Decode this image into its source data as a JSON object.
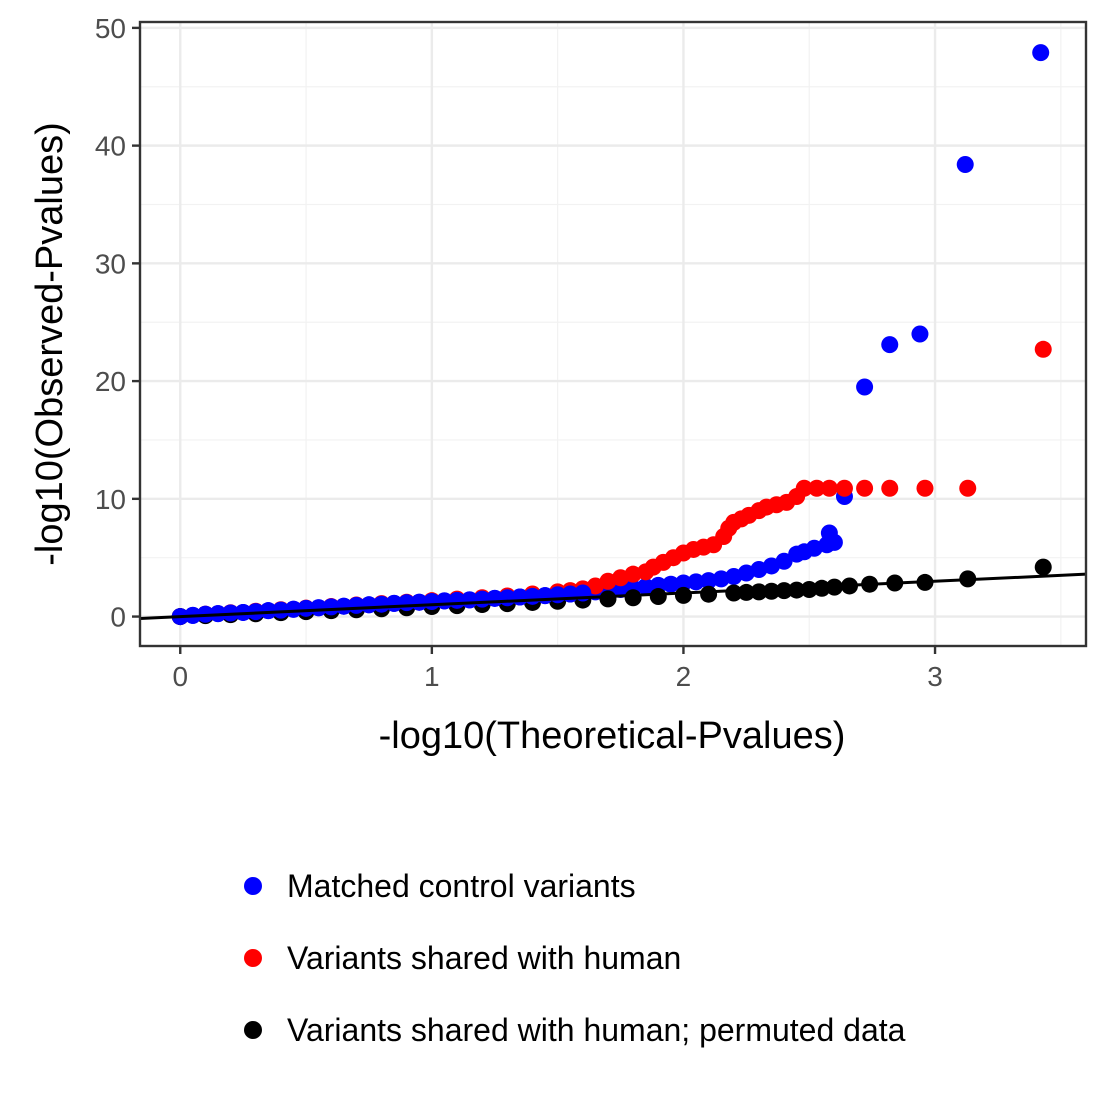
{
  "chart_data": {
    "type": "scatter",
    "title": "",
    "xlabel": "-log10(Theoretical-Pvalues)",
    "ylabel": "-log10(Observed-Pvalues)",
    "xlim": [
      -0.16,
      3.6
    ],
    "ylim": [
      -2.5,
      50.5
    ],
    "x_ticks": [
      0,
      1,
      2,
      3
    ],
    "x_tick_labels": [
      "0",
      "1",
      "2",
      "3"
    ],
    "y_ticks": [
      0,
      10,
      20,
      30,
      40,
      50
    ],
    "y_tick_labels": [
      "0",
      "10",
      "20",
      "30",
      "40",
      "50"
    ],
    "grid": true,
    "legend_position": "bottom",
    "reference_line": {
      "slope": 1,
      "intercept": 0
    },
    "series": [
      {
        "name": "Matched control variants",
        "color": "#0000ff",
        "points": [
          [
            0.0,
            0.0
          ],
          [
            0.05,
            0.1
          ],
          [
            0.1,
            0.2
          ],
          [
            0.15,
            0.25
          ],
          [
            0.2,
            0.3
          ],
          [
            0.25,
            0.35
          ],
          [
            0.3,
            0.42
          ],
          [
            0.35,
            0.5
          ],
          [
            0.4,
            0.55
          ],
          [
            0.45,
            0.62
          ],
          [
            0.5,
            0.7
          ],
          [
            0.55,
            0.75
          ],
          [
            0.6,
            0.82
          ],
          [
            0.65,
            0.88
          ],
          [
            0.7,
            0.95
          ],
          [
            0.75,
            1.0
          ],
          [
            0.8,
            1.05
          ],
          [
            0.85,
            1.12
          ],
          [
            0.9,
            1.18
          ],
          [
            0.95,
            1.22
          ],
          [
            1.0,
            1.28
          ],
          [
            1.05,
            1.33
          ],
          [
            1.1,
            1.38
          ],
          [
            1.15,
            1.42
          ],
          [
            1.2,
            1.48
          ],
          [
            1.25,
            1.55
          ],
          [
            1.3,
            1.6
          ],
          [
            1.35,
            1.66
          ],
          [
            1.4,
            1.72
          ],
          [
            1.45,
            1.78
          ],
          [
            1.5,
            1.85
          ],
          [
            1.55,
            1.92
          ],
          [
            1.6,
            2.0
          ],
          [
            1.65,
            2.1
          ],
          [
            1.7,
            2.2
          ],
          [
            1.75,
            2.3
          ],
          [
            1.8,
            2.42
          ],
          [
            1.85,
            2.55
          ],
          [
            1.9,
            2.65
          ],
          [
            1.95,
            2.75
          ],
          [
            2.0,
            2.85
          ],
          [
            2.05,
            2.95
          ],
          [
            2.1,
            3.05
          ],
          [
            2.15,
            3.2
          ],
          [
            2.2,
            3.4
          ],
          [
            2.25,
            3.7
          ],
          [
            2.3,
            4.0
          ],
          [
            2.35,
            4.3
          ],
          [
            2.4,
            4.7
          ],
          [
            2.45,
            5.3
          ],
          [
            2.48,
            5.5
          ],
          [
            2.52,
            5.8
          ],
          [
            2.57,
            6.1
          ],
          [
            2.6,
            6.3
          ],
          [
            2.58,
            7.1
          ],
          [
            2.64,
            10.2
          ],
          [
            2.72,
            19.5
          ],
          [
            2.82,
            23.1
          ],
          [
            2.94,
            24.0
          ],
          [
            3.12,
            38.4
          ],
          [
            3.42,
            47.9
          ]
        ]
      },
      {
        "name": "Variants shared with human",
        "color": "#ff0000",
        "points": [
          [
            0.0,
            0.0
          ],
          [
            0.1,
            0.2
          ],
          [
            0.2,
            0.32
          ],
          [
            0.3,
            0.45
          ],
          [
            0.4,
            0.58
          ],
          [
            0.5,
            0.72
          ],
          [
            0.6,
            0.85
          ],
          [
            0.7,
            0.98
          ],
          [
            0.8,
            1.1
          ],
          [
            0.9,
            1.22
          ],
          [
            1.0,
            1.35
          ],
          [
            1.1,
            1.48
          ],
          [
            1.2,
            1.6
          ],
          [
            1.3,
            1.75
          ],
          [
            1.4,
            1.92
          ],
          [
            1.5,
            2.1
          ],
          [
            1.55,
            2.2
          ],
          [
            1.6,
            2.35
          ],
          [
            1.65,
            2.6
          ],
          [
            1.7,
            3.0
          ],
          [
            1.75,
            3.3
          ],
          [
            1.8,
            3.6
          ],
          [
            1.85,
            3.8
          ],
          [
            1.88,
            4.2
          ],
          [
            1.92,
            4.6
          ],
          [
            1.96,
            5.0
          ],
          [
            2.0,
            5.4
          ],
          [
            2.04,
            5.7
          ],
          [
            2.08,
            5.9
          ],
          [
            2.12,
            6.1
          ],
          [
            2.16,
            6.8
          ],
          [
            2.18,
            7.5
          ],
          [
            2.2,
            8.0
          ],
          [
            2.23,
            8.3
          ],
          [
            2.26,
            8.6
          ],
          [
            2.3,
            9.0
          ],
          [
            2.33,
            9.3
          ],
          [
            2.37,
            9.5
          ],
          [
            2.41,
            9.7
          ],
          [
            2.45,
            10.2
          ],
          [
            2.48,
            10.9
          ],
          [
            2.53,
            10.9
          ],
          [
            2.58,
            10.9
          ],
          [
            2.64,
            10.9
          ],
          [
            2.72,
            10.9
          ],
          [
            2.82,
            10.9
          ],
          [
            2.96,
            10.9
          ],
          [
            3.13,
            10.9
          ],
          [
            3.43,
            22.7
          ]
        ]
      },
      {
        "name": "Variants shared with human; permuted data",
        "color": "#000000",
        "points": [
          [
            0.0,
            0.0
          ],
          [
            0.1,
            0.08
          ],
          [
            0.2,
            0.16
          ],
          [
            0.3,
            0.24
          ],
          [
            0.4,
            0.33
          ],
          [
            0.5,
            0.42
          ],
          [
            0.6,
            0.5
          ],
          [
            0.7,
            0.58
          ],
          [
            0.8,
            0.66
          ],
          [
            0.9,
            0.75
          ],
          [
            1.0,
            0.85
          ],
          [
            1.1,
            0.93
          ],
          [
            1.2,
            1.02
          ],
          [
            1.3,
            1.1
          ],
          [
            1.4,
            1.2
          ],
          [
            1.5,
            1.3
          ],
          [
            1.6,
            1.4
          ],
          [
            1.7,
            1.5
          ],
          [
            1.8,
            1.6
          ],
          [
            1.9,
            1.7
          ],
          [
            2.0,
            1.8
          ],
          [
            2.1,
            1.9
          ],
          [
            2.2,
            2.0
          ],
          [
            2.25,
            2.05
          ],
          [
            2.3,
            2.1
          ],
          [
            2.35,
            2.15
          ],
          [
            2.4,
            2.2
          ],
          [
            2.45,
            2.25
          ],
          [
            2.5,
            2.3
          ],
          [
            2.55,
            2.4
          ],
          [
            2.6,
            2.5
          ],
          [
            2.66,
            2.6
          ],
          [
            2.74,
            2.75
          ],
          [
            2.84,
            2.85
          ],
          [
            2.96,
            2.9
          ],
          [
            3.13,
            3.2
          ],
          [
            3.43,
            4.2
          ]
        ]
      }
    ]
  }
}
